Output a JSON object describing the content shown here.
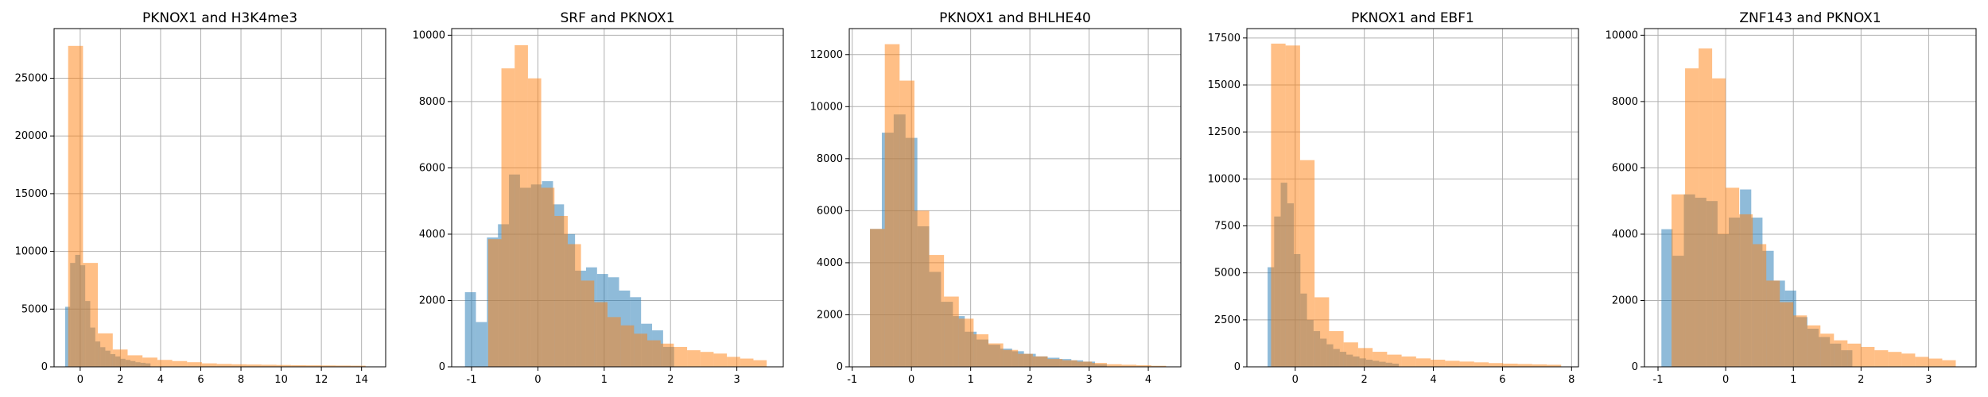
{
  "colors": {
    "series_a": "#1f77b4",
    "series_b": "#ff7f0e",
    "grid": "#b0b0b0",
    "axis": "#000000"
  },
  "chart_data": [
    {
      "type": "bar",
      "title": "PKNOX1 and H3K4me3",
      "xlim": [
        -1.3,
        15.2
      ],
      "ylim": [
        0,
        29300
      ],
      "xticks": [
        0,
        2,
        4,
        6,
        8,
        10,
        12,
        14
      ],
      "yticks": [
        0,
        5000,
        10000,
        15000,
        20000,
        25000
      ],
      "grid": true,
      "series": [
        {
          "bin_start": -0.75,
          "bin_width": 0.25,
          "values": [
            5200,
            9000,
            9700,
            8800,
            5700,
            3400,
            2200,
            1700,
            1400,
            1100,
            900,
            700,
            600,
            500,
            400,
            350,
            300
          ]
        },
        {
          "bin_start": -0.6,
          "bin_width": 0.74,
          "values": [
            27800,
            9000,
            2900,
            1500,
            1000,
            800,
            600,
            500,
            400,
            300,
            250,
            220,
            200,
            180,
            160,
            140,
            130,
            120,
            110,
            100
          ]
        }
      ]
    },
    {
      "type": "bar",
      "title": "SRF and PKNOX1",
      "xlim": [
        -1.3,
        3.7
      ],
      "ylim": [
        0,
        10200
      ],
      "xticks": [
        -1,
        0,
        1,
        2,
        3
      ],
      "yticks": [
        0,
        2000,
        4000,
        6000,
        8000,
        10000
      ],
      "grid": true,
      "series": [
        {
          "bin_start": -1.1,
          "bin_width": 0.166,
          "values": [
            2250,
            1350,
            3900,
            4300,
            5800,
            5400,
            5500,
            5600,
            4900,
            4000,
            2900,
            3000,
            2800,
            2700,
            2300,
            2100,
            1300,
            1100,
            600
          ]
        },
        {
          "bin_start": -0.75,
          "bin_width": 0.2,
          "values": [
            3850,
            9000,
            9700,
            8700,
            5400,
            4550,
            3700,
            2600,
            1950,
            1500,
            1250,
            1000,
            800,
            700,
            600,
            500,
            450,
            400,
            300,
            250,
            200
          ]
        }
      ]
    },
    {
      "type": "bar",
      "title": "PKNOX1 and BHLHE40",
      "xlim": [
        -1.05,
        4.55
      ],
      "ylim": [
        0,
        13000
      ],
      "xticks": [
        -1,
        0,
        1,
        2,
        3,
        4
      ],
      "yticks": [
        0,
        2000,
        4000,
        6000,
        8000,
        10000,
        12000
      ],
      "grid": true,
      "series": [
        {
          "bin_start": -0.7,
          "bin_width": 0.2,
          "values": [
            5300,
            9000,
            9700,
            8800,
            5400,
            3650,
            2500,
            1950,
            1350,
            1050,
            850,
            700,
            600,
            500,
            400,
            350,
            300,
            250,
            200,
            100
          ]
        },
        {
          "bin_start": -0.7,
          "bin_width": 0.25,
          "values": [
            5300,
            12400,
            11000,
            6000,
            4300,
            2700,
            1850,
            1250,
            900,
            650,
            500,
            400,
            300,
            250,
            200,
            150,
            100,
            80,
            60,
            40
          ]
        }
      ]
    },
    {
      "type": "bar",
      "title": "PKNOX1 and EBF1",
      "xlim": [
        -1.4,
        8.2
      ],
      "ylim": [
        0,
        18000
      ],
      "xticks": [
        0,
        2,
        4,
        6,
        8
      ],
      "yticks": [
        0,
        2500,
        5000,
        7500,
        10000,
        12500,
        15000,
        17500
      ],
      "grid": true,
      "series": [
        {
          "bin_start": -0.8,
          "bin_width": 0.19,
          "values": [
            5300,
            8000,
            9800,
            8700,
            6000,
            3900,
            2500,
            1900,
            1500,
            1200,
            950,
            800,
            650,
            550,
            450,
            380,
            320,
            270,
            220,
            170
          ]
        },
        {
          "bin_start": -0.7,
          "bin_width": 0.42,
          "values": [
            17200,
            17100,
            11000,
            3700,
            1900,
            1300,
            1000,
            800,
            650,
            550,
            450,
            380,
            320,
            280,
            240,
            200,
            170,
            150,
            130,
            110
          ]
        }
      ]
    },
    {
      "type": "bar",
      "title": "ZNF143 and PKNOX1",
      "xlim": [
        -1.2,
        3.7
      ],
      "ylim": [
        0,
        10200
      ],
      "xticks": [
        -1,
        0,
        1,
        2,
        3
      ],
      "yticks": [
        0,
        2000,
        4000,
        6000,
        8000,
        10000
      ],
      "grid": true,
      "series": [
        {
          "bin_start": -0.95,
          "bin_width": 0.166,
          "values": [
            4150,
            3350,
            5200,
            5100,
            5000,
            4000,
            4500,
            5350,
            4500,
            3500,
            2600,
            2300,
            1500,
            1150,
            900,
            700,
            500
          ]
        },
        {
          "bin_start": -0.8,
          "bin_width": 0.2,
          "values": [
            5200,
            9000,
            9600,
            8700,
            5400,
            4600,
            3700,
            2600,
            1950,
            1550,
            1250,
            1000,
            800,
            700,
            600,
            500,
            450,
            400,
            300,
            250,
            200
          ]
        }
      ]
    }
  ]
}
